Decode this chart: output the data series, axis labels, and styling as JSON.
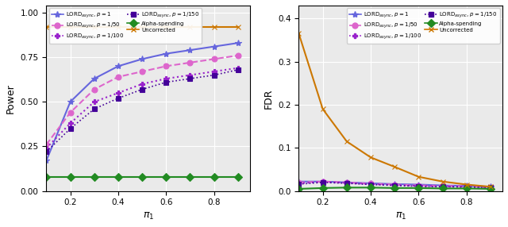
{
  "pi1": [
    0.1,
    0.2,
    0.3,
    0.4,
    0.5,
    0.6,
    0.7,
    0.8,
    0.9
  ],
  "power": {
    "lord_p1": [
      0.17,
      0.5,
      0.63,
      0.7,
      0.74,
      0.77,
      0.79,
      0.81,
      0.83
    ],
    "lord_p50": [
      0.26,
      0.44,
      0.57,
      0.64,
      0.67,
      0.7,
      0.72,
      0.74,
      0.76
    ],
    "lord_p100": [
      0.24,
      0.38,
      0.5,
      0.55,
      0.6,
      0.63,
      0.65,
      0.67,
      0.69
    ],
    "lord_p150": [
      0.22,
      0.35,
      0.46,
      0.52,
      0.57,
      0.61,
      0.63,
      0.65,
      0.68
    ],
    "alpha": [
      0.08,
      0.08,
      0.08,
      0.08,
      0.08,
      0.08,
      0.08,
      0.08,
      0.08
    ],
    "uncorr": [
      0.92,
      0.92,
      0.92,
      0.92,
      0.92,
      0.92,
      0.92,
      0.92,
      0.92
    ]
  },
  "fdr": {
    "lord_p1": [
      0.022,
      0.022,
      0.02,
      0.018,
      0.016,
      0.015,
      0.013,
      0.012,
      0.01
    ],
    "lord_p50": [
      0.02,
      0.022,
      0.02,
      0.017,
      0.015,
      0.013,
      0.012,
      0.011,
      0.009
    ],
    "lord_p100": [
      0.018,
      0.021,
      0.019,
      0.016,
      0.014,
      0.012,
      0.011,
      0.01,
      0.009
    ],
    "lord_p150": [
      0.016,
      0.02,
      0.018,
      0.015,
      0.013,
      0.011,
      0.01,
      0.009,
      0.008
    ],
    "alpha": [
      0.005,
      0.007,
      0.008,
      0.008,
      0.007,
      0.007,
      0.006,
      0.006,
      0.005
    ],
    "uncorr": [
      0.365,
      0.19,
      0.115,
      0.078,
      0.056,
      0.033,
      0.022,
      0.015,
      0.01
    ]
  },
  "colors": {
    "lord_p1": "#6666DD",
    "lord_p50": "#DD66CC",
    "lord_p100": "#9922CC",
    "lord_p150": "#440099",
    "alpha": "#228B22",
    "uncorr": "#CC7700"
  },
  "labels": {
    "lord_p1": "LORD$_{\\mathit{async}}$, $p = 1$",
    "lord_p50": "LORD$_{\\mathit{async}}$, $p = 1/50$",
    "lord_p100": "LORD$_{\\mathit{async}}$, $p = 1/100$",
    "lord_p150": "LORD$_{\\mathit{async}}$, $p = 1/150$",
    "alpha": "Alpha-spending",
    "uncorr": "Uncorrected"
  },
  "linestyles": {
    "lord_p1": "-",
    "lord_p50": "--",
    "lord_p100": ":",
    "lord_p150": ":",
    "alpha": "-",
    "uncorr": "-"
  },
  "markers": {
    "lord_p1": "*",
    "lord_p50": "o",
    "lord_p100": "P",
    "lord_p150": "s",
    "alpha": "D",
    "uncorr": "x"
  },
  "markersizes": {
    "lord_p1": 6,
    "lord_p50": 5,
    "lord_p100": 5,
    "lord_p150": 4,
    "alpha": 5,
    "uncorr": 5
  },
  "linewidths": {
    "lord_p1": 1.5,
    "lord_p50": 1.5,
    "lord_p100": 1.5,
    "lord_p150": 1.2,
    "alpha": 1.5,
    "uncorr": 1.5
  },
  "power_ylim": [
    0.0,
    1.04
  ],
  "fdr_ylim": [
    0.0,
    0.43
  ],
  "power_yticks": [
    0.0,
    0.25,
    0.5,
    0.75,
    1.0
  ],
  "fdr_yticks": [
    0.0,
    0.1,
    0.2,
    0.3,
    0.4
  ],
  "xticks": [
    0.2,
    0.4,
    0.6,
    0.8
  ],
  "xlim": [
    0.1,
    0.95
  ],
  "xlabel": "$\\pi_1$",
  "ylabel_power": "Power",
  "ylabel_fdr": "FDR",
  "bg_color": "#EAEAEA"
}
